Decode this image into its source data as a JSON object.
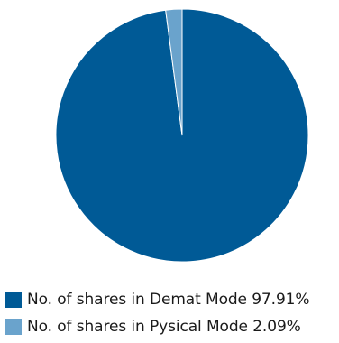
{
  "chart_data": {
    "type": "pie",
    "categories": [
      "No. of shares in Demat Mode 97.91%",
      "No. of shares in Pysical Mode 2.09%"
    ],
    "values": [
      97.91,
      2.09
    ],
    "colors": [
      "#005a96",
      "#6aa3cc"
    ],
    "legend_position": "bottom-left"
  }
}
